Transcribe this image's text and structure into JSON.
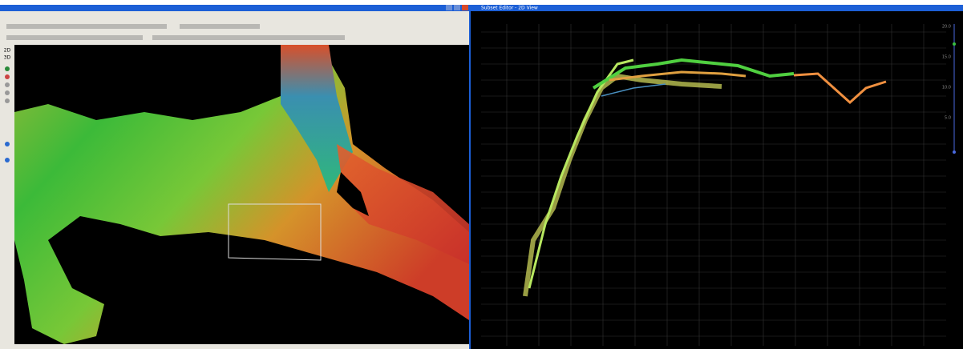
{
  "window": {
    "title": "Subset Editor - 2D View"
  },
  "toolbar": {
    "view_buttons": [
      "2D",
      "3D"
    ]
  },
  "depth_scale": {
    "labels": [
      "20.0",
      "15.0",
      "10.0",
      "5.0"
    ]
  }
}
